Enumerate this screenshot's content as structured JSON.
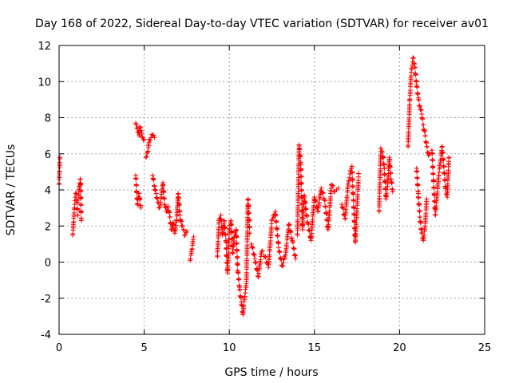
{
  "chart_data": {
    "type": "scatter",
    "title": "Day 168 of 2022, Sidereal Day-to-day VTEC variation (SDTVAR) for receiver av01",
    "xlabel": "GPS time / hours",
    "ylabel": "SDTVAR / TECUs",
    "xlim": [
      0,
      25
    ],
    "ylim": [
      -4,
      12
    ],
    "xticks": [
      0,
      5,
      10,
      15,
      20,
      25
    ],
    "yticks": [
      -4,
      -2,
      0,
      2,
      4,
      6,
      8,
      10,
      12
    ],
    "grid": true,
    "marker": "+",
    "color": "#ff0000",
    "series": [
      {
        "name": "SDTVAR",
        "segments": [
          {
            "x": [
              0.0,
              0.02,
              0.05
            ],
            "y": [
              4.3,
              5.0,
              5.8
            ]
          },
          {
            "x": [
              0.8,
              0.85,
              0.9,
              0.95,
              1.0,
              1.05,
              1.1
            ],
            "y": [
              1.5,
              2.2,
              3.0,
              3.6,
              3.8,
              3.4,
              2.6
            ]
          },
          {
            "x": [
              1.15,
              1.2,
              1.25,
              1.3
            ],
            "y": [
              3.7,
              4.2,
              4.6,
              2.3
            ]
          },
          {
            "x": [
              4.5,
              4.55,
              4.6,
              4.65,
              4.7,
              4.75,
              4.8,
              4.85,
              4.9,
              5.0
            ],
            "y": [
              7.7,
              7.6,
              7.4,
              7.2,
              7.0,
              7.5,
              7.3,
              7.1,
              6.9,
              6.8
            ]
          },
          {
            "x": [
              4.5,
              4.6,
              4.7,
              4.8
            ],
            "y": [
              4.8,
              3.2,
              3.8,
              3.0
            ]
          },
          {
            "x": [
              5.1,
              5.2,
              5.3,
              5.4,
              5.5,
              5.6
            ],
            "y": [
              5.8,
              6.1,
              6.8,
              6.9,
              7.0,
              6.9
            ]
          },
          {
            "x": [
              5.5,
              5.6,
              5.7,
              5.8,
              5.9,
              6.0,
              6.1,
              6.2,
              6.3,
              6.4,
              6.5,
              6.6,
              6.7,
              6.8,
              6.9,
              7.0,
              7.1,
              7.2,
              7.3,
              7.4,
              7.5
            ],
            "y": [
              4.8,
              4.2,
              3.8,
              3.3,
              3.0,
              3.6,
              4.4,
              3.2,
              2.8,
              3.1,
              2.5,
              1.8,
              2.2,
              1.6,
              2.3,
              3.8,
              2.6,
              2.0,
              1.8,
              1.5,
              1.7
            ]
          },
          {
            "x": [
              7.7,
              7.8,
              7.9
            ],
            "y": [
              0.1,
              0.7,
              1.4
            ]
          },
          {
            "x": [
              9.3,
              9.4,
              9.5,
              9.6,
              9.7,
              9.8,
              9.9,
              10.0,
              10.1,
              10.2,
              10.3,
              10.4,
              10.5,
              10.6,
              10.7,
              10.8,
              10.9,
              11.0,
              11.1,
              11.2
            ],
            "y": [
              0.3,
              2.4,
              2.6,
              1.5,
              2.3,
              1.2,
              -0.6,
              1.8,
              2.3,
              0.5,
              1.4,
              1.8,
              -0.5,
              -1.4,
              -2.2,
              -2.9,
              -1.9,
              -1.2,
              3.5,
              1.6
            ]
          },
          {
            "x": [
              11.3,
              11.5,
              11.7,
              11.9,
              12.1,
              12.3,
              12.5,
              12.7,
              12.9,
              13.1,
              13.3,
              13.5,
              13.7,
              13.9
            ],
            "y": [
              1.0,
              0.2,
              -0.8,
              0.6,
              0.3,
              -0.3,
              2.3,
              2.8,
              0.8,
              -0.2,
              0.4,
              2.1,
              1.2,
              0.2
            ]
          },
          {
            "x": [
              14.0,
              14.1,
              14.2,
              14.3,
              14.4,
              14.6,
              14.8,
              15.0,
              15.2,
              15.4,
              15.6,
              15.8,
              16.0,
              16.2,
              16.4
            ],
            "y": [
              1.5,
              6.5,
              5.4,
              1.8,
              3.7,
              2.2,
              1.2,
              3.6,
              2.8,
              4.1,
              3.4,
              1.8,
              4.3,
              3.9,
              4.1
            ]
          },
          {
            "x": [
              16.6,
              16.8,
              17.0,
              17.2,
              17.4,
              17.6
            ],
            "y": [
              3.2,
              2.4,
              4.5,
              5.3,
              1.1,
              4.9
            ]
          },
          {
            "x": [
              18.8,
              18.9,
              19.0,
              19.1,
              19.2,
              19.3,
              19.4,
              19.5,
              19.6
            ],
            "y": [
              2.8,
              6.3,
              6.1,
              5.2,
              3.5,
              4.2,
              5.8,
              4.6,
              3.9
            ]
          },
          {
            "x": [
              20.5,
              20.6,
              20.7,
              20.8,
              20.9,
              21.0,
              21.1,
              21.2,
              21.3,
              21.4,
              21.5,
              21.6,
              21.7,
              21.8
            ],
            "y": [
              6.4,
              9.0,
              10.7,
              11.3,
              10.8,
              9.8,
              9.1,
              8.6,
              8.2,
              7.6,
              7.0,
              6.4,
              5.9,
              6.0
            ]
          },
          {
            "x": [
              21.0,
              21.1,
              21.2,
              21.3,
              21.4,
              21.5,
              21.6
            ],
            "y": [
              5.2,
              3.8,
              2.5,
              1.6,
              1.2,
              2.0,
              3.5
            ]
          },
          {
            "x": [
              21.9,
              22.1,
              22.3,
              22.5,
              22.7,
              22.8,
              22.9
            ],
            "y": [
              6.2,
              2.6,
              4.8,
              6.4,
              4.1,
              3.6,
              5.8
            ]
          }
        ]
      }
    ]
  }
}
